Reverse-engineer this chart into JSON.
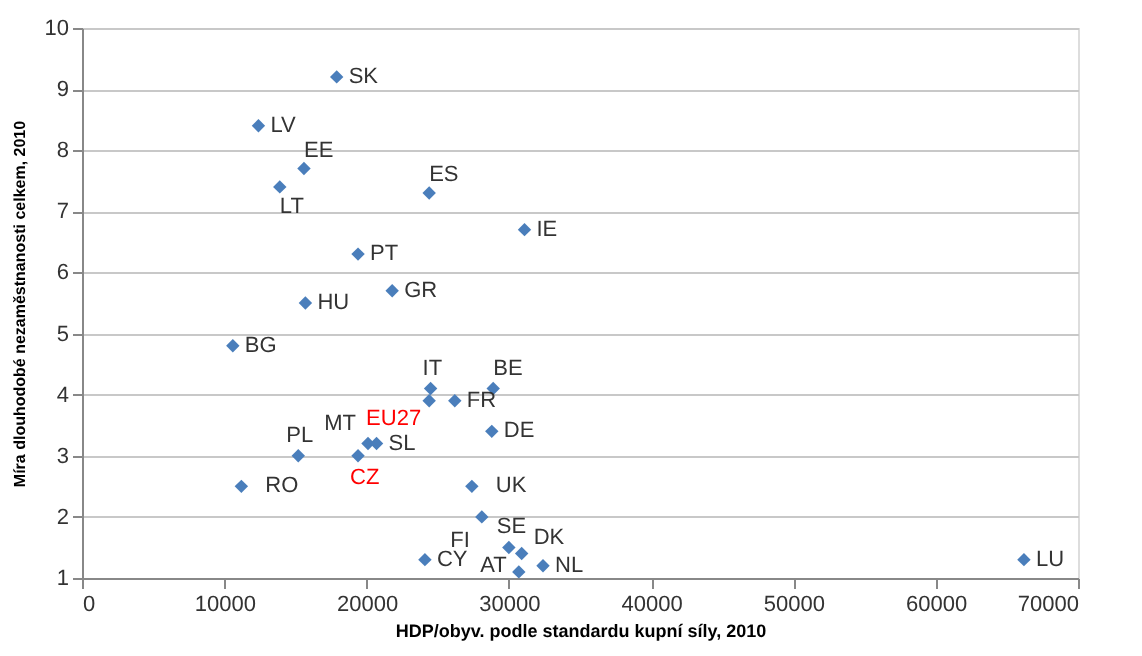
{
  "chart_data": {
    "type": "scatter",
    "xlabel": "HDP/obyv. podle standardu kupní síly, 2010",
    "ylabel": "Míra dlouhodobé nezaměstnanosti celkem, 2010",
    "x": [
      17900,
      12400,
      15600,
      13900,
      24400,
      31100,
      19400,
      21800,
      15700,
      10600,
      24500,
      28900,
      24400,
      26200,
      28800,
      20100,
      20700,
      15200,
      19400,
      11200,
      27400,
      28100,
      30000,
      30900,
      24100,
      30700,
      32400,
      66200
    ],
    "series": [
      {
        "color": "#4a7ebb",
        "values": [
          9.2,
          8.4,
          7.7,
          7.4,
          7.3,
          6.7,
          6.3,
          5.7,
          5.5,
          4.8,
          4.1,
          4.1,
          3.9,
          3.9,
          3.4,
          3.2,
          3.2,
          3.0,
          3.0,
          2.5,
          2.5,
          2.0,
          1.5,
          1.4,
          1.3,
          1.1,
          1.2,
          1.3
        ]
      }
    ],
    "annotations": [
      {
        "text": "SK",
        "x": 17900,
        "y": 9.2
      },
      {
        "text": "LV",
        "x": 12400,
        "y": 8.4
      },
      {
        "text": "EE",
        "x": 15600,
        "y": 7.7
      },
      {
        "text": "LT",
        "x": 13900,
        "y": 7.4
      },
      {
        "text": "ES",
        "x": 24400,
        "y": 7.3
      },
      {
        "text": "IE",
        "x": 31100,
        "y": 6.7
      },
      {
        "text": "PT",
        "x": 19400,
        "y": 6.3
      },
      {
        "text": "GR",
        "x": 21800,
        "y": 5.7
      },
      {
        "text": "HU",
        "x": 15700,
        "y": 5.5
      },
      {
        "text": "BG",
        "x": 10600,
        "y": 4.8
      },
      {
        "text": "IT",
        "x": 24500,
        "y": 4.1
      },
      {
        "text": "BE",
        "x": 28900,
        "y": 4.1
      },
      {
        "text": "EU27",
        "x": 24400,
        "y": 3.9
      },
      {
        "text": "FR",
        "x": 26200,
        "y": 3.9
      },
      {
        "text": "DE",
        "x": 28800,
        "y": 3.4
      },
      {
        "text": "MT",
        "x": 20100,
        "y": 3.2
      },
      {
        "text": "SL",
        "x": 20700,
        "y": 3.2
      },
      {
        "text": "PL",
        "x": 15200,
        "y": 3.0
      },
      {
        "text": "CZ",
        "x": 19400,
        "y": 3.0
      },
      {
        "text": "RO",
        "x": 11200,
        "y": 2.5
      },
      {
        "text": "UK",
        "x": 27400,
        "y": 2.5
      },
      {
        "text": "FI",
        "x": 28100,
        "y": 2.0
      },
      {
        "text": "SE",
        "x": 30000,
        "y": 1.5
      },
      {
        "text": "DK",
        "x": 30900,
        "y": 1.4
      },
      {
        "text": "CY",
        "x": 24100,
        "y": 1.3
      },
      {
        "text": "AT",
        "x": 30700,
        "y": 1.1
      },
      {
        "text": "NL",
        "x": 32400,
        "y": 1.2
      },
      {
        "text": "LU",
        "x": 66200,
        "y": 1.3
      }
    ],
    "xlim": [
      0,
      70000
    ],
    "xticks": [
      0,
      10000,
      20000,
      30000,
      40000,
      50000,
      60000,
      70000
    ],
    "ylim": [
      1,
      10
    ],
    "yticks": [
      1,
      2,
      3,
      4,
      5,
      6,
      7,
      8,
      9,
      10
    ],
    "grid": "y",
    "marker": "diamond"
  }
}
